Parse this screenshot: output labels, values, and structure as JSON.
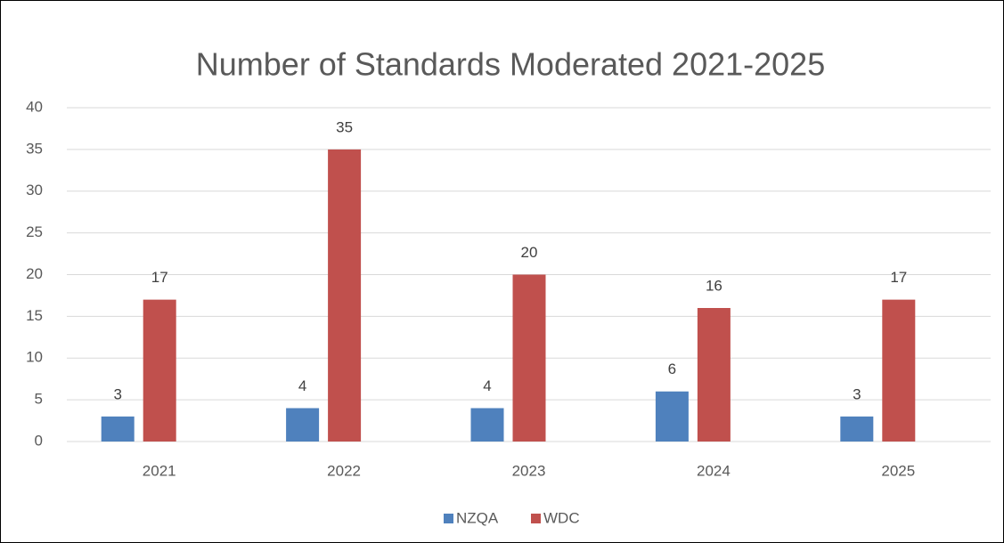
{
  "chart_data": {
    "type": "bar",
    "title": "Number of Standards Moderated 2021-2025",
    "categories": [
      "2021",
      "2022",
      "2023",
      "2024",
      "2025"
    ],
    "series": [
      {
        "name": "NZQA",
        "color": "#4f81bd",
        "values": [
          3,
          4,
          4,
          6,
          3
        ]
      },
      {
        "name": "WDC",
        "color": "#c0504d",
        "values": [
          17,
          35,
          20,
          16,
          17
        ]
      }
    ],
    "ylim": [
      0,
      40
    ],
    "yticks": [
      0,
      5,
      10,
      15,
      20,
      25,
      30,
      35,
      40
    ],
    "grid": true,
    "legend": "bottom"
  }
}
